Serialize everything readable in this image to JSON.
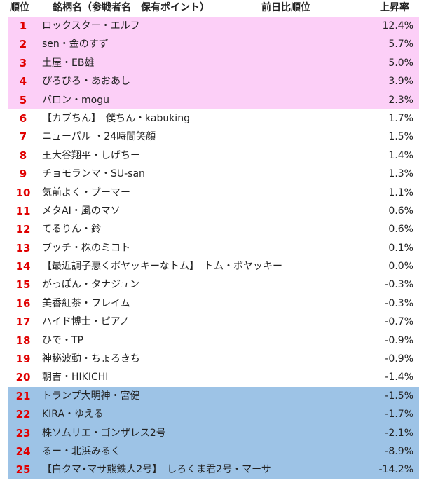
{
  "header": {
    "rank": "順位",
    "name": "銘柄名（参戦者名　保有ポイント）",
    "prev": "前日比順位",
    "change": "上昇率"
  },
  "table": {
    "rows": [
      [
        1,
        "ロックスター・エルフ",
        "12.4%"
      ],
      [
        2,
        "sen・金のすず",
        "5.7%"
      ],
      [
        3,
        "土屋・EB雄",
        "5.0%"
      ],
      [
        4,
        "ぴろぴろ・あおあし",
        "3.9%"
      ],
      [
        5,
        "バロン・mogu",
        "2.3%"
      ],
      [
        6,
        "【カブちん】　僕ちん・kabuking",
        "1.7%"
      ],
      [
        7,
        "ニューパル ・24時間笑顔",
        "1.5%"
      ],
      [
        8,
        "王大谷翔平・しげちー",
        "1.4%"
      ],
      [
        9,
        "チョモランマ・SU-san",
        "1.3%"
      ],
      [
        10,
        "気前よく・ブーマー",
        "1.1%"
      ],
      [
        11,
        "メタAI・風のマソ",
        "0.6%"
      ],
      [
        12,
        "てるりん・鈴",
        "0.6%"
      ],
      [
        13,
        "ブッチ・株のミコト",
        "0.1%"
      ],
      [
        14,
        "【最近調子悪くボヤッキーなトム】　トム・ボヤッキー",
        "0.0%"
      ],
      [
        15,
        "がっぽん・タナジュン",
        "-0.3%"
      ],
      [
        16,
        "美香紅茶・フレイム",
        "-0.3%"
      ],
      [
        17,
        "ハイド博士・ピアノ",
        "-0.7%"
      ],
      [
        18,
        "ひで・TP",
        "-0.9%"
      ],
      [
        19,
        "神秘波動・ちょろきち",
        "-0.9%"
      ],
      [
        20,
        "朝吉・HIKICHI",
        "-1.4%"
      ],
      [
        21,
        "トランプ大明神・宮健",
        "-1.5%"
      ],
      [
        22,
        "KIRA・ゆえる",
        "-1.7%"
      ],
      [
        23,
        "株ソムリエ・ゴンザレス2号",
        "-2.1%"
      ],
      [
        24,
        "るー・北浜みるく",
        "-8.9%"
      ],
      [
        25,
        "【白クマ•マサ熊鉄人2号】　しろくま君2号・マーサ",
        "-14.2%"
      ]
    ]
  }
}
